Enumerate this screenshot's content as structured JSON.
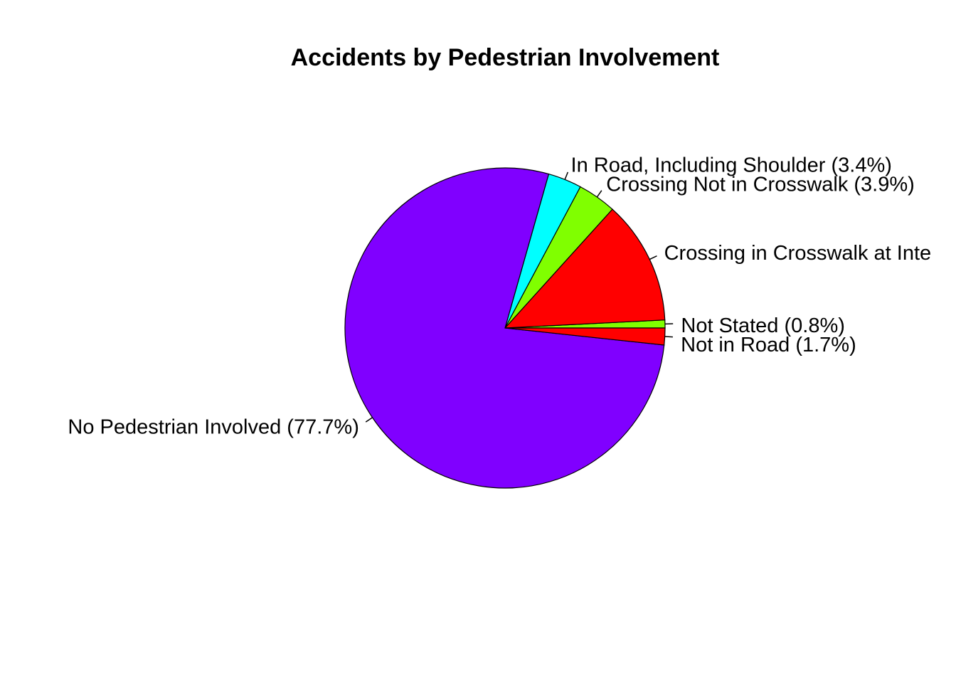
{
  "chart_data": {
    "type": "pie",
    "title": "Accidents by Pedestrian Involvement",
    "start_angle_deg": 0,
    "direction": "counterclockwise",
    "slices": [
      {
        "name": "Not Stated",
        "value": 0.8,
        "label": "Not Stated (0.8%)",
        "color": "#80FF00"
      },
      {
        "name": "Crossing in Crosswalk at Intersection",
        "value": 12.5,
        "label": "Crossing in Crosswalk at Inte",
        "color": "#FF0000"
      },
      {
        "name": "Crossing Not in Crosswalk",
        "value": 3.9,
        "label": "Crossing Not in Crosswalk (3.9%)",
        "color": "#80FF00"
      },
      {
        "name": "In Road, Including Shoulder",
        "value": 3.4,
        "label": "In Road, Including Shoulder (3.4%)",
        "color": "#00FFFF"
      },
      {
        "name": "No Pedestrian Involved",
        "value": 77.7,
        "label": "No Pedestrian Involved (77.7%)",
        "color": "#8000FF"
      },
      {
        "name": "Not in Road",
        "value": 1.7,
        "label": "Not in Road (1.7%)",
        "color": "#FF0000"
      }
    ]
  }
}
